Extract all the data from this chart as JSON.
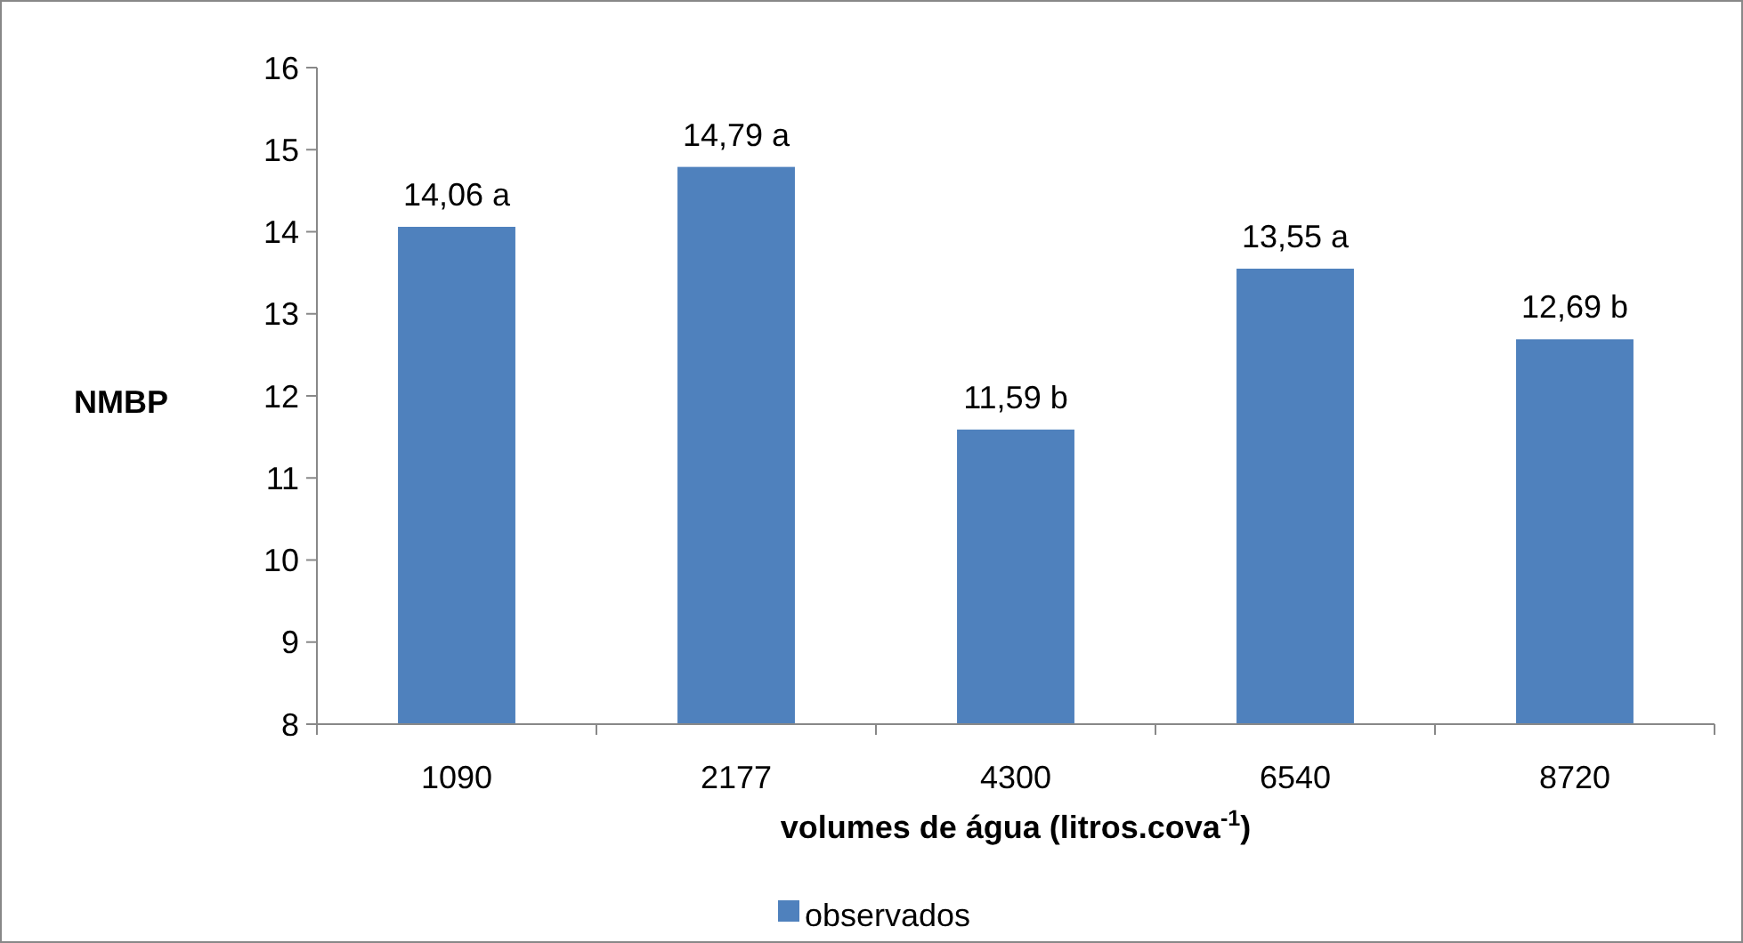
{
  "chart_data": {
    "type": "bar",
    "xlabel": "volumes de água (litros.cova$^{-1}$)",
    "ylabel": "NMBP",
    "categories": [
      "1090",
      "2177",
      "4300",
      "6540",
      "8720"
    ],
    "series": [
      {
        "name": "observados",
        "color": "#4f81bd",
        "values": [
          14.06,
          14.79,
          11.59,
          13.55,
          12.69
        ]
      }
    ],
    "value_labels": [
      "14,06 a",
      "14,79 a",
      "11,59 b",
      "13,55 a",
      "12,69 b"
    ],
    "ylim": [
      8,
      16
    ],
    "yticks": [
      8,
      9,
      10,
      11,
      12,
      13,
      14,
      15,
      16
    ],
    "grid": false,
    "legend": "bottom"
  }
}
